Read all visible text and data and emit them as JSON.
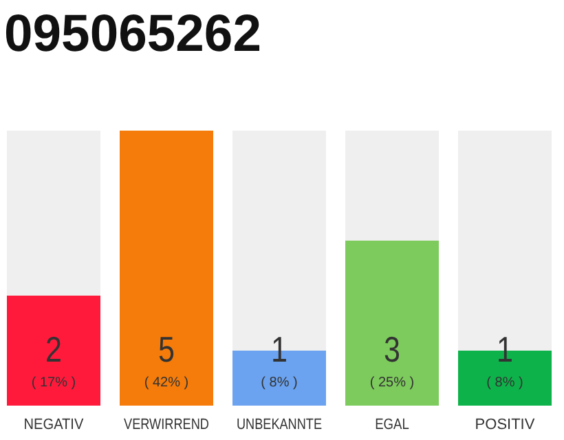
{
  "chart_data": {
    "type": "bar",
    "title": "095065262",
    "categories": [
      "NEGATIV",
      "VERWIRREND",
      "UNBEKANNTE",
      "EGAL",
      "POSITIV"
    ],
    "values": [
      2,
      5,
      1,
      3,
      1
    ],
    "colors": [
      "#ff1a3c",
      "#f57c0a",
      "#6ba3f0",
      "#7dcb5d",
      "#0db34a"
    ],
    "ylim": [
      0,
      5
    ],
    "data_labels": true,
    "tick_labels": "x",
    "annotations": [
      "( 17% )",
      "( 42% )",
      "( 8% )",
      "( 25% )",
      "( 8% )"
    ]
  }
}
